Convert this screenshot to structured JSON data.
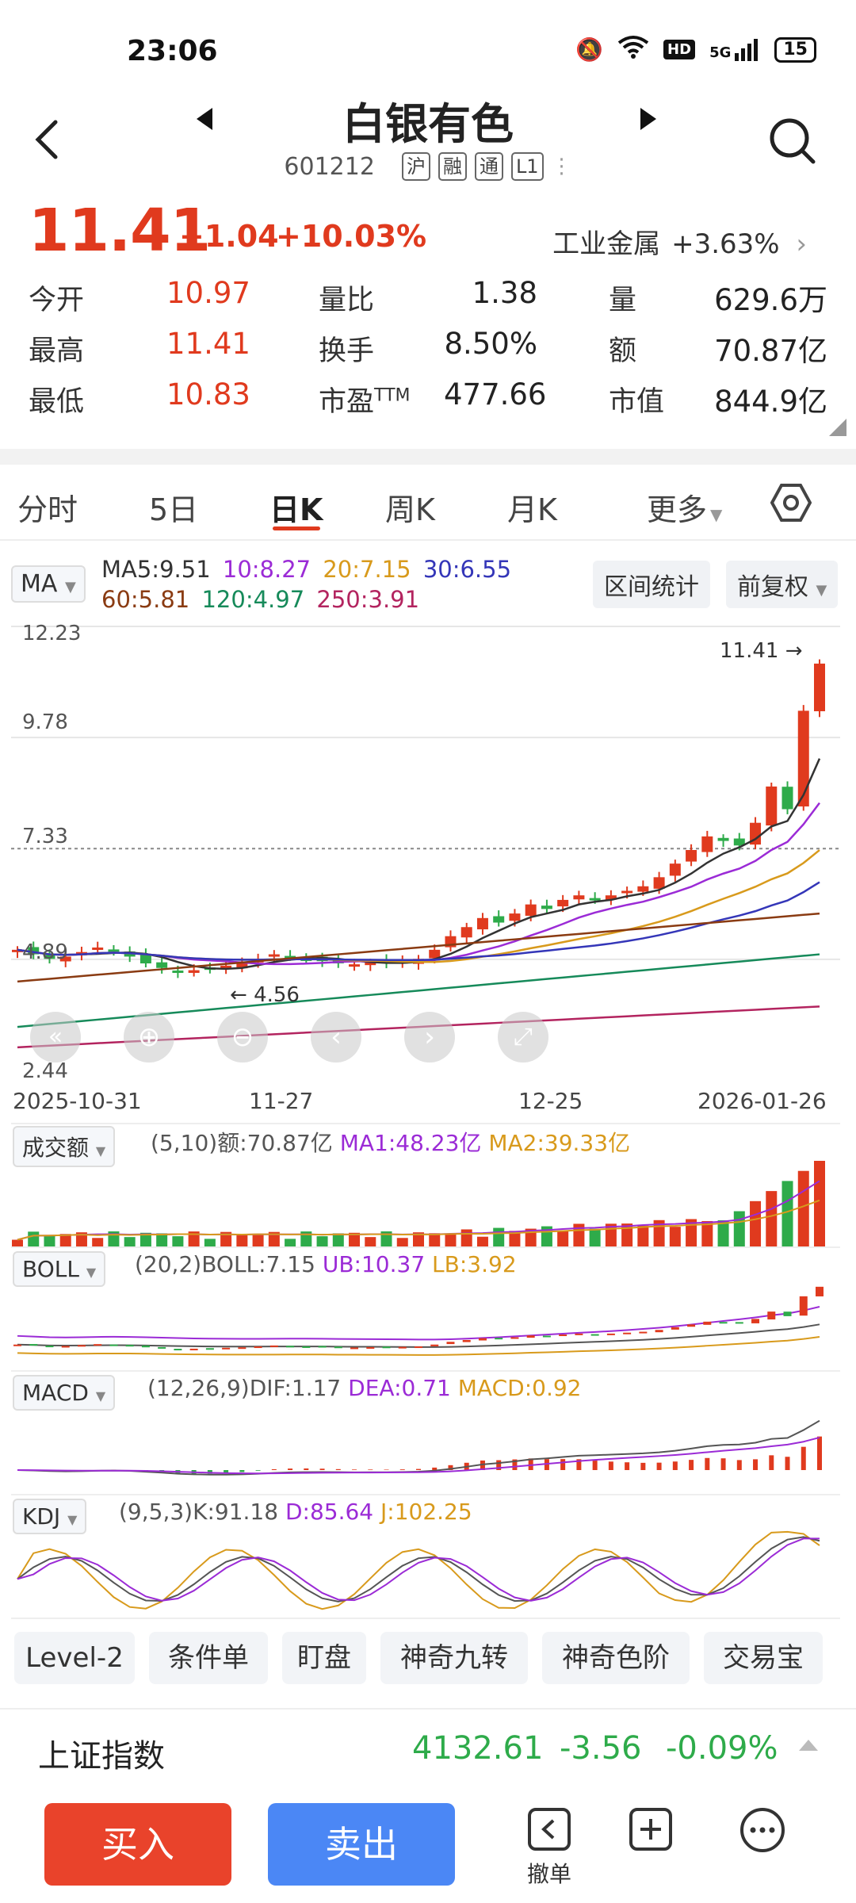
{
  "status_bar": {
    "time": "23:06",
    "battery": "15",
    "network": "5G",
    "hd": "HD"
  },
  "header": {
    "title": "白银有色",
    "code": "601212",
    "tags": [
      "沪",
      "融",
      "通",
      "L1"
    ]
  },
  "quote": {
    "price": "11.41",
    "change": "+1.04",
    "change_pct": "+10.03%",
    "sector_name": "工业金属",
    "sector_pct": "+3.63%",
    "stats": [
      {
        "label": "今开",
        "value": "10.97"
      },
      {
        "label": "最高",
        "value": "11.41"
      },
      {
        "label": "最低",
        "value": "10.83"
      },
      {
        "label": "量比",
        "value": "1.38"
      },
      {
        "label": "换手",
        "value": "8.50%"
      },
      {
        "label": "市盈",
        "sup": "TTM",
        "value": "477.66"
      },
      {
        "label": "量",
        "value": "629.6万"
      },
      {
        "label": "额",
        "value": "70.87亿"
      },
      {
        "label": "市值",
        "value": "844.9亿"
      }
    ]
  },
  "tabs": [
    "分时",
    "5日",
    "日K",
    "周K",
    "月K",
    "更多"
  ],
  "ma": {
    "selector": "MA",
    "line1": [
      {
        "text": "MA5:9.51",
        "color": "#333333"
      },
      {
        "text": "10:8.27",
        "color": "#9b2bd6"
      },
      {
        "text": "20:7.15",
        "color": "#d89a1c"
      },
      {
        "text": "30:6.55",
        "color": "#3436b8"
      }
    ],
    "line2": [
      {
        "text": "60:5.81",
        "color": "#8a3b12"
      },
      {
        "text": "120:4.97",
        "color": "#168a5a"
      },
      {
        "text": "250:3.91",
        "color": "#b3245f"
      }
    ],
    "range_stats": "区间统计",
    "adjust": "前复权"
  },
  "chart_data": {
    "type": "candlestick",
    "y_ticks": [
      "12.23",
      "9.78",
      "7.33",
      "4.89",
      "2.44"
    ],
    "x_ticks": [
      "2025-10-31",
      "11-27",
      "12-25",
      "2026-01-26"
    ],
    "max_label": "11.41",
    "min_label": "4.56",
    "closes": [
      5.1,
      5.0,
      4.9,
      4.95,
      5.05,
      5.15,
      5.1,
      4.95,
      4.8,
      4.7,
      4.6,
      4.65,
      4.7,
      4.75,
      4.8,
      4.9,
      5.0,
      4.95,
      4.9,
      4.85,
      4.8,
      4.78,
      4.82,
      4.8,
      4.85,
      4.9,
      5.1,
      5.4,
      5.6,
      5.8,
      5.7,
      5.9,
      6.1,
      6.0,
      6.2,
      6.3,
      6.2,
      6.3,
      6.4,
      6.5,
      6.7,
      7.0,
      7.3,
      7.6,
      7.5,
      7.4,
      7.9,
      8.7,
      8.2,
      10.37,
      11.41
    ],
    "volume": {
      "label": "成交额",
      "params": "(5,10)额:70.87亿",
      "ma1": "MA1:48.23亿",
      "ma2": "MA2:39.33亿"
    },
    "boll": {
      "label": "BOLL",
      "params": "(20,2)BOLL:7.15",
      "ub": "UB:10.37",
      "lb": "LB:3.92"
    },
    "macd": {
      "label": "MACD",
      "params": "(12,26,9)DIF:1.17",
      "dea": "DEA:0.71",
      "macd": "MACD:0.92"
    },
    "kdj": {
      "label": "KDJ",
      "params": "(9,5,3)K:91.18",
      "d": "D:85.64",
      "j": "J:102.25"
    }
  },
  "tools": [
    "Level-2",
    "条件单",
    "盯盘",
    "神奇九转",
    "神奇色阶",
    "交易宝"
  ],
  "index": {
    "name": "上证指数",
    "value": "4132.61",
    "change": "-3.56",
    "pct": "-0.09%"
  },
  "actions": {
    "buy": "买入",
    "sell": "卖出",
    "cancel": "撤单"
  },
  "colors": {
    "up": "#e03a1e",
    "down": "#2eab4a",
    "accent": "#e03a1e",
    "buy": "#e9432b",
    "sell": "#4b87f5"
  }
}
